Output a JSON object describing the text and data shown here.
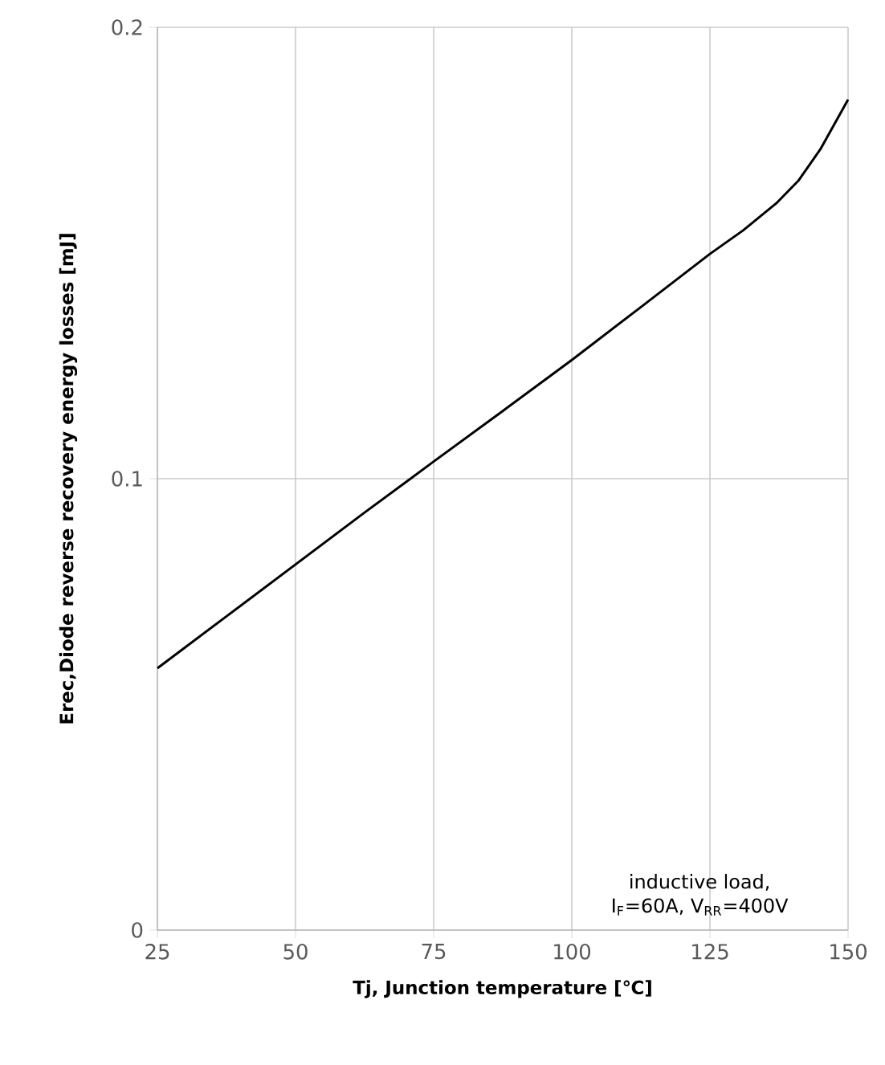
{
  "chart_data": {
    "type": "line",
    "xlabel": "Tj, Junction temperature [℃]",
    "ylabel": "Erec,Diode reverse recovery energy losses [mJ]",
    "x": [
      25,
      37.5,
      50,
      62.5,
      75,
      87.5,
      100,
      112.5,
      125,
      131,
      137,
      141,
      145,
      150
    ],
    "series": [
      {
        "color": "#000000",
        "values": [
          0.058,
          0.0695,
          0.081,
          0.0925,
          0.1038,
          0.115,
          0.1263,
          0.138,
          0.1498,
          0.155,
          0.161,
          0.166,
          0.173,
          0.184
        ]
      }
    ],
    "xlim": [
      25,
      150
    ],
    "xticks": [
      25,
      50,
      75,
      100,
      125,
      150
    ],
    "ylim": [
      0,
      0.2
    ],
    "yticks": [
      0,
      0.1,
      0.2
    ],
    "grid": true,
    "marker": "none",
    "line_style": "solid",
    "annotations": [
      "inductive load,",
      "I$_{F}$=60A, V$_{RR}$=400V"
    ]
  }
}
